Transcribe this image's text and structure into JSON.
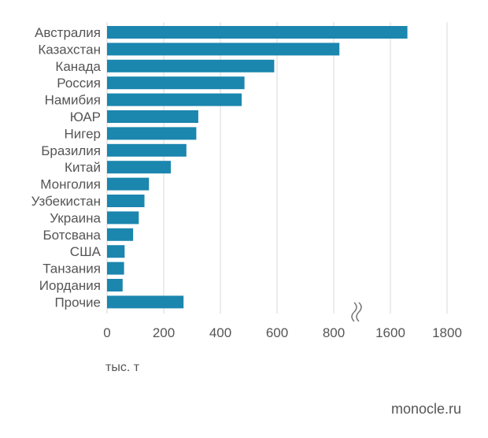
{
  "chart_data": {
    "type": "bar",
    "orientation": "horizontal",
    "categories": [
      "Австралия",
      "Казахстан",
      "Канада",
      "Россия",
      "Намибия",
      "ЮАР",
      "Нигер",
      "Бразилия",
      "Китай",
      "Монголия",
      "Узбекистан",
      "Украина",
      "Ботсвана",
      "США",
      "Танзания",
      "Иордания",
      "Прочие"
    ],
    "values": [
      1660,
      820,
      590,
      485,
      475,
      322,
      315,
      280,
      225,
      148,
      132,
      112,
      92,
      62,
      60,
      55,
      270
    ],
    "x_ticks": [
      "0",
      "200",
      "400",
      "600",
      "800",
      "1600",
      "1800"
    ],
    "x_axis_break": {
      "from": 900,
      "to": 1500
    },
    "xlim": [
      0,
      1800
    ],
    "grid": true,
    "bar_color": "#1b86ae",
    "unit_label": "тыс. т"
  },
  "credit": "monocle.ru"
}
